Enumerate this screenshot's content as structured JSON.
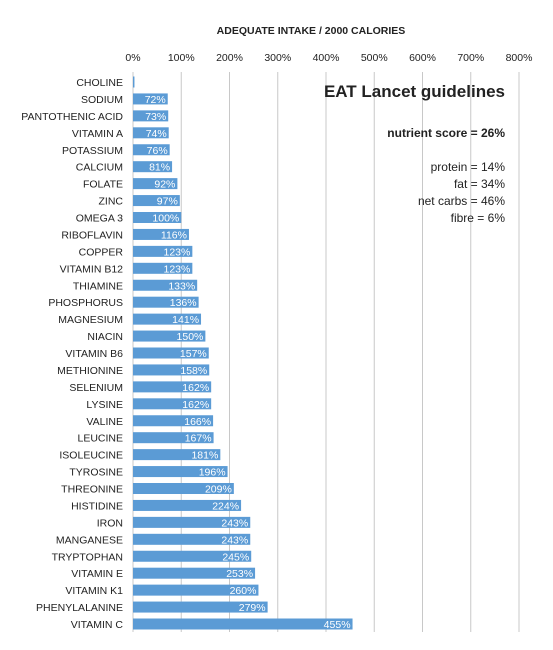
{
  "chart_data": {
    "type": "bar",
    "orientation": "horizontal",
    "xlabel": "ADEQUATE INTAKE / 2000 CALORIES",
    "xlim": [
      0,
      800
    ],
    "x_ticks": [
      "0%",
      "100%",
      "200%",
      "300%",
      "400%",
      "500%",
      "600%",
      "700%",
      "800%"
    ],
    "grid": true,
    "bar_color": "#5b9bd5",
    "categories": [
      "CHOLINE",
      "SODIUM",
      "PANTOTHENIC ACID",
      "VITAMIN A",
      "POTASSIUM",
      "CALCIUM",
      "FOLATE",
      "ZINC",
      "OMEGA 3",
      "RIBOFLAVIN",
      "COPPER",
      "VITAMIN B12",
      "THIAMINE",
      "PHOSPHORUS",
      "MAGNESIUM",
      "NIACIN",
      "VITAMIN B6",
      "METHIONINE",
      "SELENIUM",
      "LYSINE",
      "VALINE",
      "LEUCINE",
      "ISOLEUCINE",
      "TYROSINE",
      "THREONINE",
      "HISTIDINE",
      "IRON",
      "MANGANESE",
      "TRYPTOPHAN",
      "VITAMIN E",
      "VITAMIN K1",
      "PHENYLALANINE",
      "VITAMIN C"
    ],
    "values": [
      3,
      72,
      73,
      74,
      76,
      81,
      92,
      97,
      100,
      116,
      123,
      123,
      133,
      136,
      141,
      150,
      157,
      158,
      162,
      162,
      166,
      167,
      181,
      196,
      209,
      224,
      243,
      243,
      245,
      253,
      260,
      279,
      455
    ],
    "data_labels": [
      "3",
      "72%",
      "73%",
      "74%",
      "76%",
      "81%",
      "92%",
      "97%",
      "100%",
      "116%",
      "123%",
      "123%",
      "133%",
      "136%",
      "141%",
      "150%",
      "157%",
      "158%",
      "162%",
      "162%",
      "166%",
      "167%",
      "181%",
      "196%",
      "209%",
      "224%",
      "243%",
      "243%",
      "245%",
      "253%",
      "260%",
      "279%",
      "455%"
    ]
  },
  "annotations": {
    "title": "EAT Lancet guidelines",
    "score": "nutrient score = 26%",
    "protein": "protein = 14%",
    "fat": "fat = 34%",
    "carbs": "net carbs = 46%",
    "fibre": "fibre = 6%"
  }
}
